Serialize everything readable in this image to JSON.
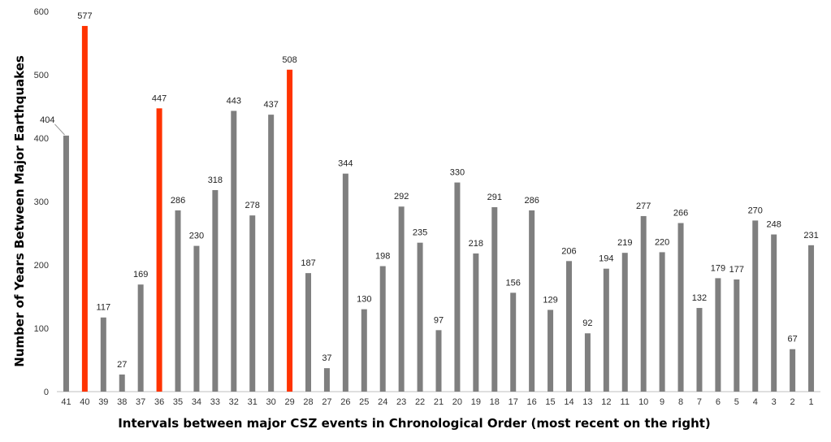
{
  "chart_data": {
    "type": "bar",
    "title": "",
    "xlabel": "Intervals between major CSZ events in Chronological Order (most recent on the right)",
    "ylabel": "Number of Years Between Major Earthquakes",
    "ylim": [
      0,
      600
    ],
    "yticks": [
      0,
      100,
      200,
      300,
      400,
      500,
      600
    ],
    "categories": [
      "41",
      "40",
      "39",
      "38",
      "37",
      "36",
      "35",
      "34",
      "33",
      "32",
      "31",
      "30",
      "29",
      "28",
      "27",
      "26",
      "25",
      "24",
      "23",
      "22",
      "21",
      "20",
      "19",
      "18",
      "17",
      "16",
      "15",
      "14",
      "13",
      "12",
      "11",
      "10",
      "9",
      "8",
      "7",
      "6",
      "5",
      "4",
      "3",
      "2",
      "1"
    ],
    "values": [
      404,
      577,
      117,
      27,
      169,
      447,
      286,
      230,
      318,
      443,
      278,
      437,
      508,
      187,
      37,
      344,
      130,
      198,
      292,
      235,
      97,
      330,
      218,
      291,
      156,
      286,
      129,
      206,
      92,
      194,
      219,
      277,
      220,
      266,
      132,
      179,
      177,
      270,
      248,
      67,
      231
    ],
    "highlighted_categories": [
      "40",
      "36",
      "29"
    ],
    "colors": {
      "bar": "#7f7f7f",
      "highlight": "#ff3300",
      "axis": "#bfbfbf"
    },
    "grid": false,
    "legend": "none"
  }
}
